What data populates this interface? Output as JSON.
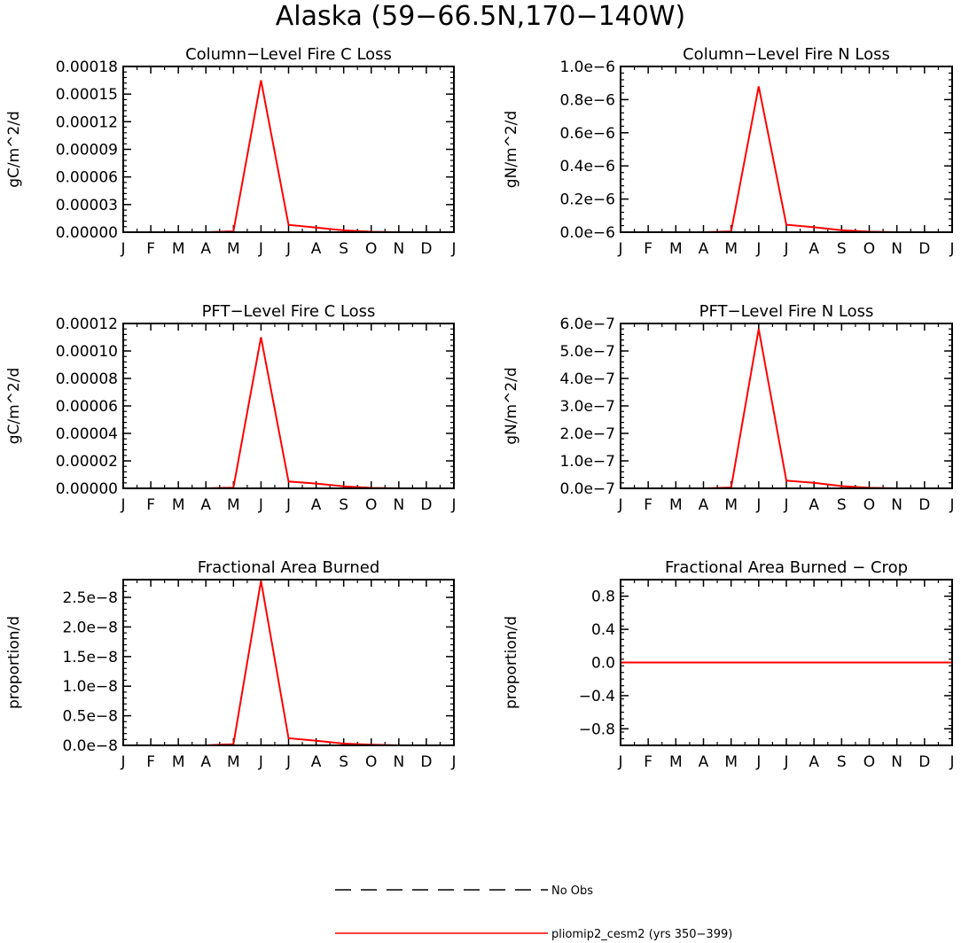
{
  "figure_title": "Alaska (59−66.5N,170−140W)",
  "legend": {
    "entries": [
      {
        "label": "No Obs",
        "style": "dashed",
        "color": "#000000"
      },
      {
        "label": "pliomip2_cesm2 (yrs 350−399)",
        "style": "solid",
        "color": "#ff0000"
      }
    ]
  },
  "chart_data": [
    {
      "type": "line",
      "title": "Column−Level Fire C Loss",
      "ylabel": "gC/m^2/d",
      "categories": [
        "J",
        "F",
        "M",
        "A",
        "M",
        "J",
        "J",
        "A",
        "S",
        "O",
        "N",
        "D",
        "J"
      ],
      "ylim": [
        0,
        0.00018
      ],
      "yticks": [
        0,
        3e-05,
        6e-05,
        9e-05,
        0.00012,
        0.00015,
        0.00018
      ],
      "yticklabels": [
        "0.00000",
        "0.00003",
        "0.00006",
        "0.00009",
        "0.00012",
        "0.00015",
        "0.00018"
      ],
      "series": [
        {
          "name": "pliomip2_cesm2 (yrs 350−399)",
          "color": "#ff0000",
          "values": [
            0,
            0,
            0,
            0,
            1e-06,
            0.000165,
            8e-06,
            5e-06,
            2e-06,
            5e-07,
            0,
            0,
            0
          ]
        }
      ]
    },
    {
      "type": "line",
      "title": "Column−Level Fire N Loss",
      "ylabel": "gN/m^2/d",
      "categories": [
        "J",
        "F",
        "M",
        "A",
        "M",
        "J",
        "J",
        "A",
        "S",
        "O",
        "N",
        "D",
        "J"
      ],
      "ylim": [
        0,
        1e-06
      ],
      "yticks": [
        0,
        2e-07,
        4e-07,
        6e-07,
        8e-07,
        1e-06
      ],
      "yticklabels": [
        "0.0e−6",
        "0.2e−6",
        "0.4e−6",
        "0.6e−6",
        "0.8e−6",
        "1.0e−6"
      ],
      "series": [
        {
          "name": "pliomip2_cesm2 (yrs 350−399)",
          "color": "#ff0000",
          "values": [
            0,
            0,
            0,
            0,
            5e-09,
            8.8e-07,
            4.5e-08,
            3e-08,
            1.2e-08,
            3e-09,
            0,
            0,
            0
          ]
        }
      ]
    },
    {
      "type": "line",
      "title": "PFT−Level Fire C Loss",
      "ylabel": "gC/m^2/d",
      "categories": [
        "J",
        "F",
        "M",
        "A",
        "M",
        "J",
        "J",
        "A",
        "S",
        "O",
        "N",
        "D",
        "J"
      ],
      "ylim": [
        0,
        0.00012
      ],
      "yticks": [
        0,
        2e-05,
        4e-05,
        6e-05,
        8e-05,
        0.0001,
        0.00012
      ],
      "yticklabels": [
        "0.00000",
        "0.00002",
        "0.00004",
        "0.00006",
        "0.00008",
        "0.00010",
        "0.00012"
      ],
      "series": [
        {
          "name": "pliomip2_cesm2 (yrs 350−399)",
          "color": "#ff0000",
          "values": [
            0,
            0,
            0,
            0,
            5e-07,
            0.00011,
            5e-06,
            3.5e-06,
            1.5e-06,
            3e-07,
            0,
            0,
            0
          ]
        }
      ]
    },
    {
      "type": "line",
      "title": "PFT−Level Fire N Loss",
      "ylabel": "gN/m^2/d",
      "categories": [
        "J",
        "F",
        "M",
        "A",
        "M",
        "J",
        "J",
        "A",
        "S",
        "O",
        "N",
        "D",
        "J"
      ],
      "ylim": [
        0,
        6e-07
      ],
      "yticks": [
        0,
        1e-07,
        2e-07,
        3e-07,
        4e-07,
        5e-07,
        6e-07
      ],
      "yticklabels": [
        "0.0e−7",
        "1.0e−7",
        "2.0e−7",
        "3.0e−7",
        "4.0e−7",
        "5.0e−7",
        "6.0e−7"
      ],
      "series": [
        {
          "name": "pliomip2_cesm2 (yrs 350−399)",
          "color": "#ff0000",
          "values": [
            0,
            0,
            0,
            0,
            3e-09,
            5.8e-07,
            2.8e-08,
            2e-08,
            8e-09,
            2e-09,
            0,
            0,
            0
          ]
        }
      ]
    },
    {
      "type": "line",
      "title": "Fractional Area Burned",
      "ylabel": "proportion/d",
      "categories": [
        "J",
        "F",
        "M",
        "A",
        "M",
        "J",
        "J",
        "A",
        "S",
        "O",
        "N",
        "D",
        "J"
      ],
      "ylim": [
        0,
        2.8e-08
      ],
      "yticks": [
        0,
        5e-09,
        1e-08,
        1.5e-08,
        2e-08,
        2.5e-08
      ],
      "yticklabels": [
        "0.0e−8",
        "0.5e−8",
        "1.0e−8",
        "1.5e−8",
        "2.0e−8",
        "2.5e−8"
      ],
      "series": [
        {
          "name": "pliomip2_cesm2 (yrs 350−399)",
          "color": "#ff0000",
          "values": [
            0,
            0,
            0,
            0,
            2e-10,
            2.78e-08,
            1.2e-09,
            8e-10,
            3e-10,
            1e-10,
            0,
            0,
            0
          ]
        }
      ]
    },
    {
      "type": "line",
      "title": "Fractional Area Burned − Crop",
      "ylabel": "proportion/d",
      "categories": [
        "J",
        "F",
        "M",
        "A",
        "M",
        "J",
        "J",
        "A",
        "S",
        "O",
        "N",
        "D",
        "J"
      ],
      "ylim": [
        -1.0,
        1.0
      ],
      "yticks": [
        -0.8,
        -0.4,
        0,
        0.4,
        0.8
      ],
      "yticklabels": [
        "−0.8",
        "−0.4",
        "0.0",
        "0.4",
        "0.8"
      ],
      "series": [
        {
          "name": "pliomip2_cesm2 (yrs 350−399)",
          "color": "#ff0000",
          "values": [
            0,
            0,
            0,
            0,
            0,
            0,
            0,
            0,
            0,
            0,
            0,
            0,
            0
          ]
        }
      ]
    }
  ]
}
